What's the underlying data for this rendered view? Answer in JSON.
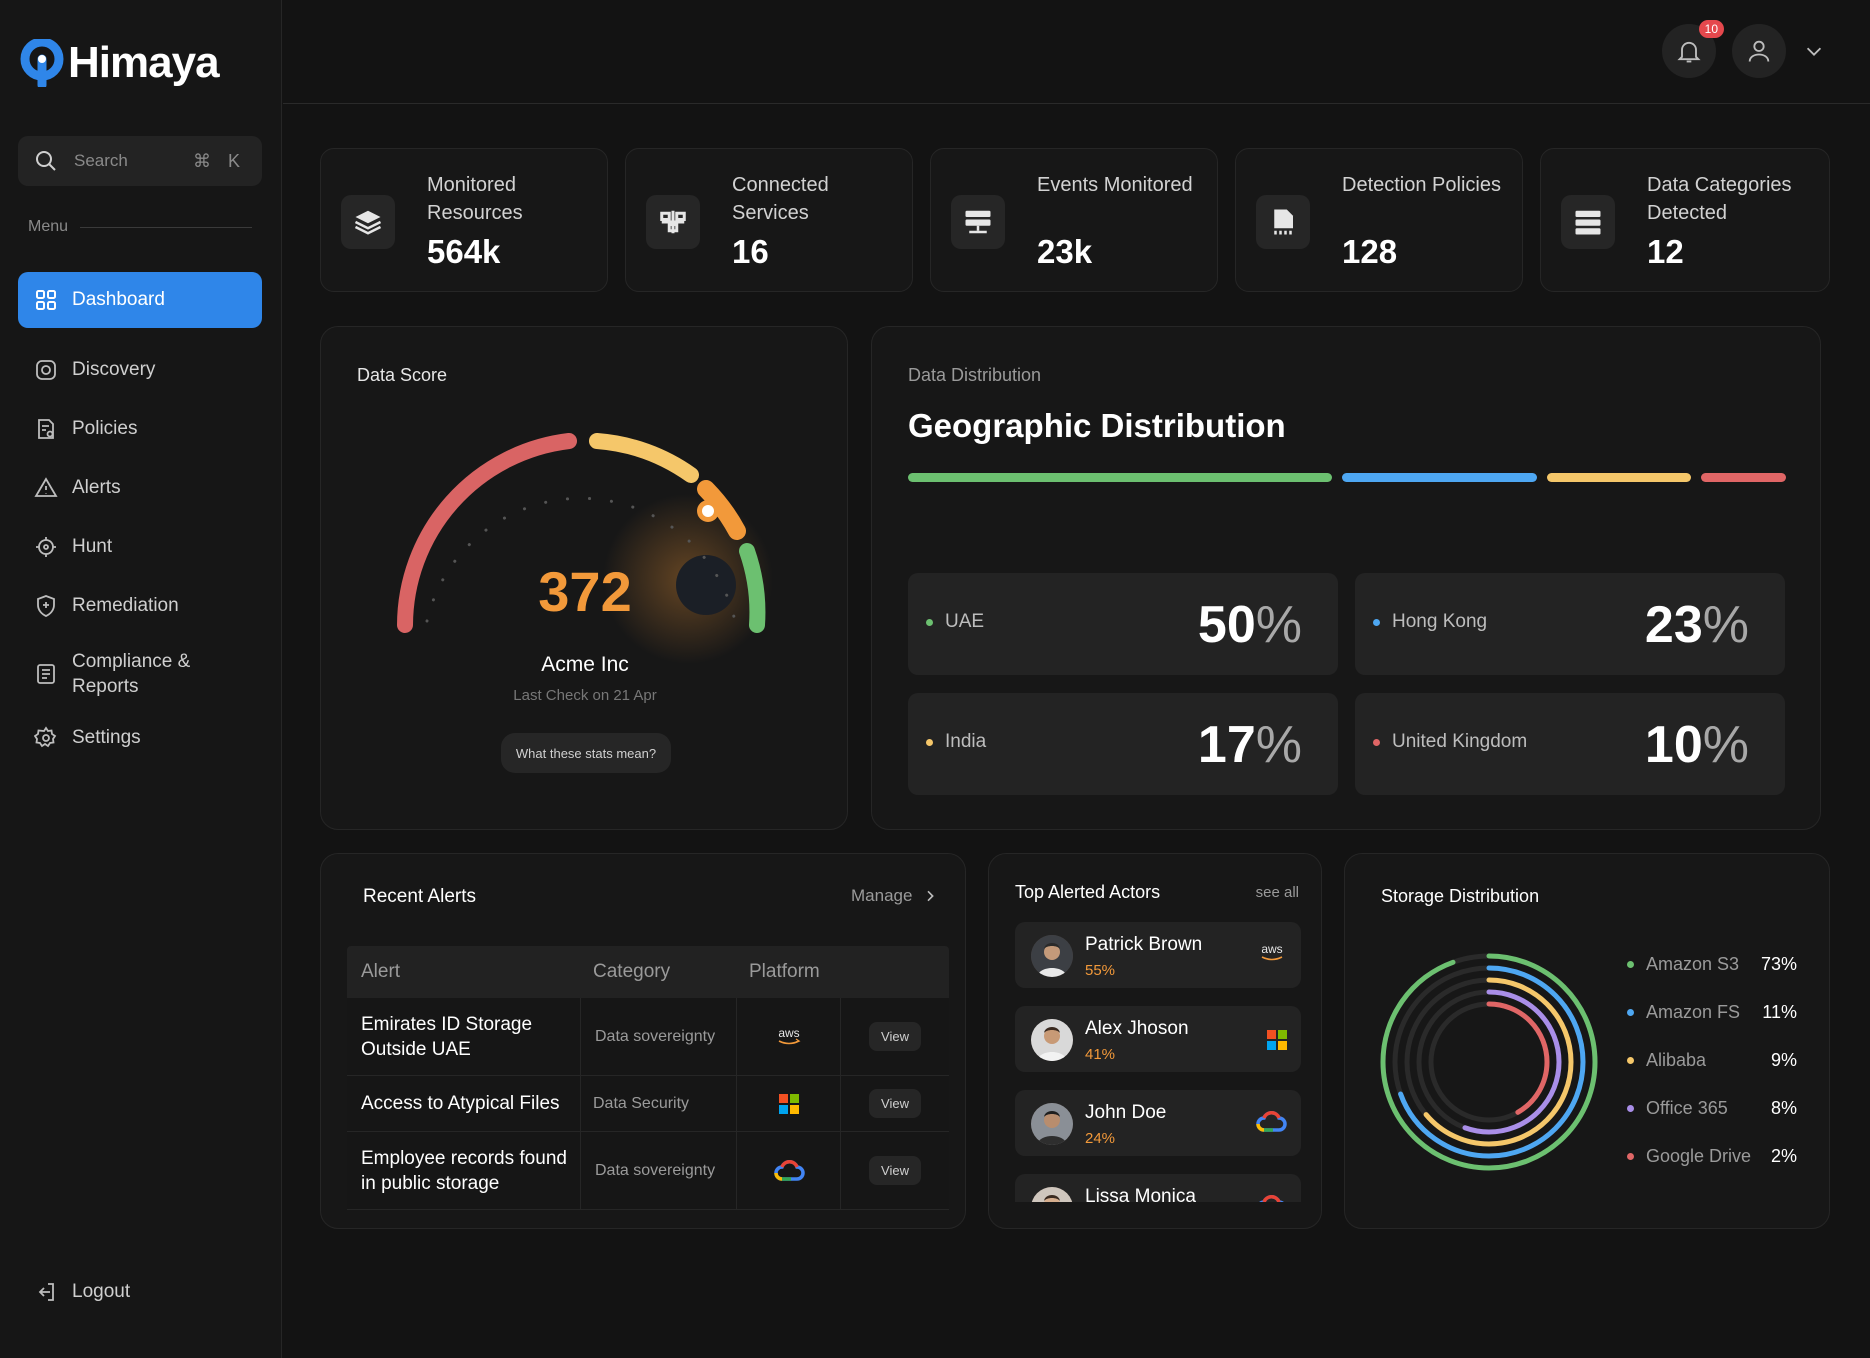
{
  "app": {
    "name": "Himaya"
  },
  "sidebar": {
    "search_placeholder": "Search",
    "search_shortcut": "⌘ K",
    "menu_label": "Menu",
    "items": [
      {
        "label": "Dashboard",
        "icon": "grid-icon",
        "active": true
      },
      {
        "label": "Discovery",
        "icon": "discovery-icon"
      },
      {
        "label": "Policies",
        "icon": "policies-icon"
      },
      {
        "label": "Alerts",
        "icon": "alert-triangle-icon"
      },
      {
        "label": "Hunt",
        "icon": "crosshair-icon"
      },
      {
        "label": "Remediation",
        "icon": "shield-icon"
      },
      {
        "label": "Compliance & Reports",
        "icon": "report-icon"
      },
      {
        "label": "Settings",
        "icon": "gear-icon"
      }
    ],
    "logout_label": "Logout"
  },
  "topbar": {
    "notification_count": "10"
  },
  "stats": [
    {
      "label": "Monitored Resources",
      "value": "564k",
      "icon": "layers-icon"
    },
    {
      "label": "Connected Services",
      "value": "16",
      "icon": "network-icon"
    },
    {
      "label": "Events Monitored",
      "value": "23k",
      "icon": "server-icon"
    },
    {
      "label": "Detection Policies",
      "value": "128",
      "icon": "document-icon"
    },
    {
      "label": "Data Categories Detected",
      "value": "12",
      "icon": "database-icon"
    }
  ],
  "data_score": {
    "title": "Data Score",
    "score": "372",
    "score_value": 372,
    "company": "Acme Inc",
    "last_check": "Last Check on 21 Apr",
    "help_button": "What these stats mean?"
  },
  "geo": {
    "section": "Data Distribution",
    "title": "Geographic Distribution",
    "regions": [
      {
        "name": "UAE",
        "value": "50",
        "color": "#6cc070"
      },
      {
        "name": "Hong Kong",
        "value": "23",
        "color": "#4ea7f2"
      },
      {
        "name": "India",
        "value": "17",
        "color": "#f5c76a"
      },
      {
        "name": "United Kingdom",
        "value": "10",
        "color": "#e06666"
      }
    ],
    "pct_sign": "%"
  },
  "alerts": {
    "title": "Recent Alerts",
    "manage": "Manage",
    "columns": [
      "Alert",
      "Category",
      "Platform"
    ],
    "rows": [
      {
        "alert": "Emirates ID Storage Outside UAE",
        "category": "Data sovereignty",
        "platform": "aws",
        "action": "View"
      },
      {
        "alert": "Access to Atypical Files",
        "category": "Data Security",
        "platform": "microsoft",
        "action": "View"
      },
      {
        "alert": "Employee records found in public storage",
        "category": "Data sovereignty",
        "platform": "google-cloud",
        "action": "View"
      }
    ]
  },
  "actors": {
    "title": "Top Alerted Actors",
    "see_all": "see all",
    "list": [
      {
        "name": "Patrick Brown",
        "pct": "55%",
        "platform": "aws"
      },
      {
        "name": "Alex Jhoson",
        "pct": "41%",
        "platform": "microsoft"
      },
      {
        "name": "John Doe",
        "pct": "24%",
        "platform": "google-cloud"
      },
      {
        "name": "Lissa Monica",
        "pct": "",
        "platform": "google-cloud"
      }
    ]
  },
  "storage": {
    "title": "Storage Distribution",
    "items": [
      {
        "name": "Amazon S3",
        "value": "73%",
        "pct": 73,
        "color": "#6cc070"
      },
      {
        "name": "Amazon FS",
        "value": "11%",
        "pct": 11,
        "color": "#4ea7f2"
      },
      {
        "name": "Alibaba",
        "value": "9%",
        "pct": 9,
        "color": "#f5c76a"
      },
      {
        "name": "Office 365",
        "value": "8%",
        "pct": 8,
        "color": "#a98ee8"
      },
      {
        "name": "Google Drive",
        "value": "2%",
        "pct": 2,
        "color": "#e06666"
      }
    ]
  }
}
